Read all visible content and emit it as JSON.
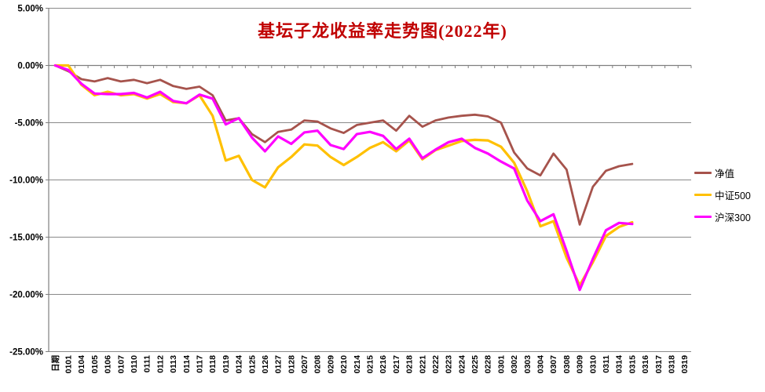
{
  "title": "基坛子龙收益率走势图(2022年)",
  "colors": {
    "title": "#C00000",
    "gridline": "#898989",
    "axis": "#7f7f7f",
    "label": "#000000",
    "background": "#ffffff"
  },
  "legend": {
    "items": [
      "净值",
      "中证500",
      "沪深300"
    ]
  },
  "chart_data": {
    "type": "line",
    "title": "基坛子龙收益率走势图(2022年)",
    "xlabel": "",
    "ylabel": "",
    "ylim": [
      -25,
      5
    ],
    "grid": true,
    "legend_position": "right",
    "y_ticks": [
      {
        "label": "5.00%",
        "value": 5
      },
      {
        "label": "0.00%",
        "value": 0
      },
      {
        "label": "-5.00%",
        "value": -5
      },
      {
        "label": "-10.00%",
        "value": -10
      },
      {
        "label": "-15.00%",
        "value": -15
      },
      {
        "label": "-20.00%",
        "value": -20
      },
      {
        "label": "-25.00%",
        "value": -25
      }
    ],
    "categories": [
      "日期",
      "0101",
      "0104",
      "0105",
      "0106",
      "0107",
      "0110",
      "0111",
      "0112",
      "0113",
      "0114",
      "0117",
      "0118",
      "0119",
      "0124",
      "0125",
      "0126",
      "0127",
      "0128",
      "0207",
      "0208",
      "0209",
      "0210",
      "0214",
      "0215",
      "0216",
      "0217",
      "0218",
      "0221",
      "0222",
      "0223",
      "0224",
      "0225",
      "0228",
      "0301",
      "0302",
      "0303",
      "0304",
      "0307",
      "0308",
      "0309",
      "0310",
      "0311",
      "0314",
      "0315",
      "0316",
      "0317",
      "0318",
      "0319"
    ],
    "series": [
      {
        "name": "净值",
        "color": "#A6534C",
        "stroke_width": 2.8,
        "values": [
          0,
          -0.5,
          -1.2,
          -1.4,
          -1.1,
          -1.4,
          -1.25,
          -1.55,
          -1.25,
          -1.8,
          -2.05,
          -1.85,
          -2.6,
          -4.8,
          -4.6,
          -6.0,
          -6.7,
          -5.8,
          -5.6,
          -4.8,
          -4.9,
          -5.5,
          -5.9,
          -5.2,
          -5.0,
          -4.8,
          -5.7,
          -4.4,
          -5.35,
          -4.8,
          -4.55,
          -4.4,
          -4.3,
          -4.45,
          -5.0,
          -7.6,
          -9.0,
          -9.6,
          -7.7,
          -9.1,
          -13.9,
          -10.6,
          -9.2,
          -8.8,
          -8.6,
          null,
          null,
          null,
          null
        ]
      },
      {
        "name": "中证500",
        "color": "#FFC000",
        "stroke_width": 3.2,
        "values": [
          0,
          0,
          -1.7,
          -2.6,
          -2.3,
          -2.6,
          -2.5,
          -2.9,
          -2.5,
          -3.2,
          -3.3,
          -2.6,
          -4.4,
          -8.3,
          -7.9,
          -10.0,
          -10.65,
          -8.9,
          -8.0,
          -6.9,
          -7.0,
          -8.0,
          -8.7,
          -8.0,
          -7.2,
          -6.7,
          -7.5,
          -6.55,
          -8.2,
          -7.4,
          -7.0,
          -6.6,
          -6.5,
          -6.55,
          -7.1,
          -8.5,
          -11.0,
          -14.05,
          -13.6,
          -16.8,
          -19.2,
          -17.2,
          -14.9,
          -14.1,
          -13.7,
          null,
          null,
          null,
          null
        ]
      },
      {
        "name": "沪深300",
        "color": "#FF00FF",
        "stroke_width": 3.2,
        "values": [
          0,
          -0.4,
          -1.6,
          -2.45,
          -2.5,
          -2.5,
          -2.4,
          -2.8,
          -2.3,
          -3.1,
          -3.3,
          -2.55,
          -2.9,
          -5.15,
          -4.6,
          -6.3,
          -7.5,
          -6.2,
          -6.85,
          -5.85,
          -5.7,
          -6.95,
          -7.3,
          -6.0,
          -5.8,
          -6.15,
          -7.3,
          -6.4,
          -8.1,
          -7.35,
          -6.7,
          -6.4,
          -7.2,
          -7.7,
          -8.4,
          -9.0,
          -11.8,
          -13.6,
          -13.0,
          -16.2,
          -19.6,
          -16.9,
          -14.4,
          -13.75,
          -13.85,
          null,
          null,
          null,
          null
        ]
      }
    ]
  }
}
